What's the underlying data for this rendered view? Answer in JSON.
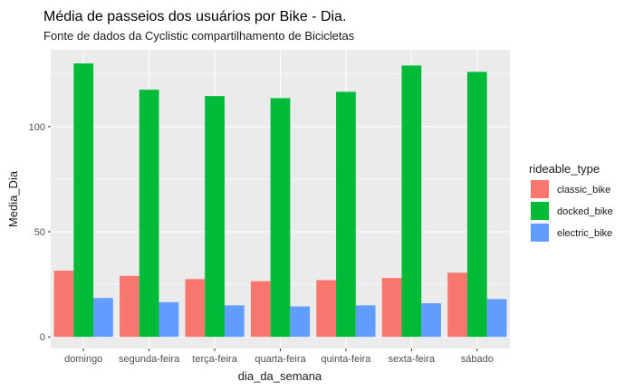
{
  "chart_data": {
    "type": "bar",
    "title": "Média de passeios dos usuários por Bike - Dia.",
    "subtitle": "Fonte de dados da Cyclistic compartilhamento de Bicicletas",
    "xlabel": "dia_da_semana",
    "ylabel": "Media_Dia",
    "categories": [
      "domingo",
      "segunda-feira",
      "terça-feira",
      "quarta-feira",
      "quinta-feira",
      "sexta-feira",
      "sábado"
    ],
    "series": [
      {
        "name": "classic_bike",
        "color": "#F8766D",
        "values": [
          31.5,
          29,
          27.5,
          26.5,
          27,
          28,
          30.5
        ]
      },
      {
        "name": "docked_bike",
        "color": "#00BA38",
        "values": [
          130,
          117.5,
          114.5,
          113.5,
          116.5,
          129,
          126
        ]
      },
      {
        "name": "electric_bike",
        "color": "#619CFF",
        "values": [
          18.5,
          16.5,
          15,
          14.5,
          15,
          16,
          18
        ]
      }
    ],
    "yticks": [
      0,
      50,
      100
    ],
    "ytick_labels": [
      "0",
      "50",
      "100"
    ],
    "ylim": [
      -5.5,
      136.5
    ],
    "legend": {
      "title": "rideable_type",
      "position": "right"
    },
    "grid": true,
    "panel_background": "#EBEBEB"
  }
}
